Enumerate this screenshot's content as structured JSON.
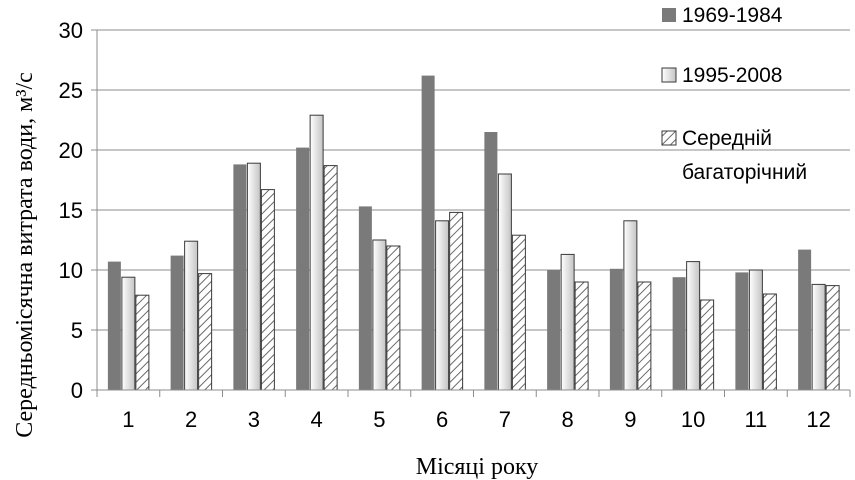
{
  "chart_data": {
    "type": "bar",
    "xlabel": "Місяці року",
    "ylabel": "Середньомісячна витрата води, м³/с",
    "ylim": [
      0,
      30
    ],
    "yticks": [
      0,
      5,
      10,
      15,
      20,
      25,
      30
    ],
    "grid": true,
    "legend_position": "top-right",
    "categories": [
      "1",
      "2",
      "3",
      "4",
      "5",
      "6",
      "7",
      "8",
      "9",
      "10",
      "11",
      "12"
    ],
    "series": [
      {
        "name": "1969-1984",
        "style": "solid",
        "color": "#7a7a7a",
        "values": [
          10.7,
          11.2,
          18.8,
          20.2,
          15.3,
          26.2,
          21.5,
          10.0,
          10.1,
          9.4,
          9.8,
          11.7
        ]
      },
      {
        "name": "1995-2008",
        "style": "gradient",
        "color": "#dcdcdc",
        "values": [
          9.4,
          12.4,
          18.9,
          22.9,
          12.5,
          14.1,
          18.0,
          11.3,
          14.1,
          10.7,
          10.0,
          8.8
        ]
      },
      {
        "name": "Середній багаторічний",
        "name_lines": [
          "Середній",
          "багаторічний"
        ],
        "style": "hatched",
        "color": "#ffffff",
        "values": [
          7.9,
          9.7,
          16.7,
          18.7,
          12.0,
          14.8,
          12.9,
          9.0,
          9.0,
          7.5,
          8.0,
          8.7
        ]
      }
    ]
  }
}
